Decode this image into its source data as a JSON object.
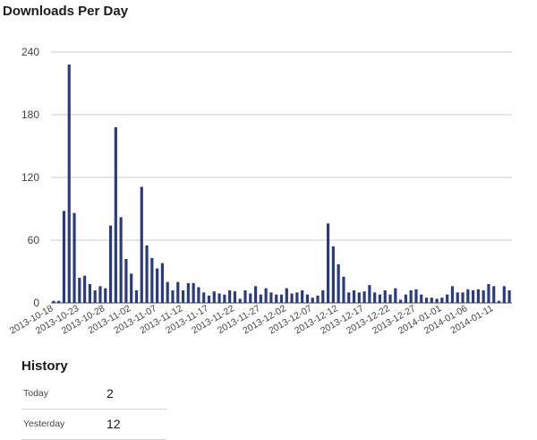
{
  "chart_data": {
    "type": "bar",
    "title": "Downloads Per Day",
    "xlabel": "",
    "ylabel": "",
    "ylim": [
      0,
      240
    ],
    "yticks": [
      0,
      60,
      120,
      180,
      240
    ],
    "grid": true,
    "color": "#2b3b80",
    "x_tick_labels": [
      "2013-10-18",
      "2013-10-23",
      "2013-10-28",
      "2013-11-02",
      "2013-11-07",
      "2013-11-12",
      "2013-11-17",
      "2013-11-22",
      "2013-11-27",
      "2013-12-02",
      "2013-12-07",
      "2013-12-12",
      "2013-12-17",
      "2013-12-22",
      "2013-12-27",
      "2014-01-01",
      "2014-01-06",
      "2014-01-11"
    ],
    "values": [
      2,
      2,
      88,
      228,
      86,
      24,
      26,
      18,
      12,
      16,
      14,
      74,
      168,
      82,
      42,
      28,
      12,
      111,
      55,
      43,
      33,
      38,
      20,
      12,
      20,
      12,
      19,
      19,
      15,
      10,
      7,
      11,
      9,
      8,
      12,
      11,
      4,
      12,
      9,
      16,
      8,
      14,
      10,
      8,
      8,
      14,
      9,
      10,
      12,
      8,
      5,
      7,
      12,
      76,
      54,
      37,
      25,
      10,
      12,
      10,
      11,
      17,
      10,
      8,
      12,
      8,
      14,
      3,
      8,
      12,
      13,
      8,
      5,
      5,
      4,
      5,
      8,
      16,
      10,
      10,
      13,
      12,
      13,
      12,
      18,
      16,
      2,
      16,
      12
    ]
  },
  "history": {
    "title": "History",
    "rows": [
      {
        "label": "Today",
        "value": "2"
      },
      {
        "label": "Yesterday",
        "value": "12"
      }
    ]
  }
}
